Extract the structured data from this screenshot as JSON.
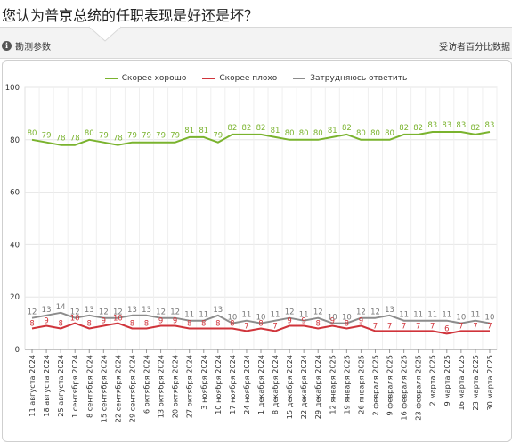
{
  "header": {
    "title": "您认为普京总统的任职表现是好还是坏？",
    "info_label": "勘测参数",
    "info_icon": "info-icon",
    "units_label": "受访者百分比数据"
  },
  "colors": {
    "good": "#7ab32e",
    "bad": "#d0343b",
    "unsure": "#8c8c8c"
  },
  "chart_data": {
    "type": "line",
    "ylim": [
      0,
      100
    ],
    "yticks": [
      0,
      20,
      40,
      60,
      80,
      100
    ],
    "grid": true,
    "legend": "top-center",
    "categories": [
      "11 августа 2024",
      "18 августа 2024",
      "25 августа 2024",
      "1 сентября 2024",
      "8 сентября 2024",
      "15 сентября 2024",
      "22 сентября 2024",
      "29 сентября 2024",
      "6 октября 2024",
      "13 октября 2024",
      "20 октября 2024",
      "27 октября 2024",
      "3 ноября 2024",
      "10 ноября 2024",
      "17 ноября 2024",
      "24 ноября 2024",
      "1 декабря 2024",
      "8 декабря 2024",
      "15 декабря 2024",
      "22 декабря 2024",
      "29 декабря 2024",
      "12 января 2025",
      "19 января 2025",
      "26 января 2025",
      "2 февраля 2025",
      "9 февраля 2025",
      "16 февраля 2025",
      "23 февраля 2025",
      "2 марта 2025",
      "9 марта 2025",
      "16 марта 2025",
      "23 марта 2025",
      "30 марта 2025"
    ],
    "series": [
      {
        "name": "Скорее хорошо",
        "values": [
          80,
          79,
          78,
          78,
          80,
          79,
          78,
          79,
          79,
          79,
          79,
          81,
          81,
          79,
          82,
          82,
          82,
          81,
          80,
          80,
          80,
          81,
          82,
          80,
          80,
          80,
          82,
          82,
          83,
          83,
          83,
          82,
          83
        ]
      },
      {
        "name": "Скорее плохо",
        "values": [
          8,
          9,
          8,
          10,
          8,
          9,
          10,
          8,
          8,
          9,
          9,
          8,
          8,
          8,
          8,
          7,
          8,
          7,
          9,
          9,
          8,
          9,
          8,
          9,
          7,
          7,
          7,
          7,
          7,
          6,
          7,
          7,
          7
        ]
      },
      {
        "name": "Затрудняюсь ответить",
        "values": [
          12,
          13,
          14,
          12,
          13,
          12,
          12,
          13,
          13,
          12,
          12,
          11,
          11,
          13,
          10,
          11,
          10,
          11,
          12,
          11,
          12,
          10,
          10,
          12,
          12,
          13,
          11,
          11,
          11,
          11,
          10,
          11,
          10
        ]
      }
    ]
  }
}
